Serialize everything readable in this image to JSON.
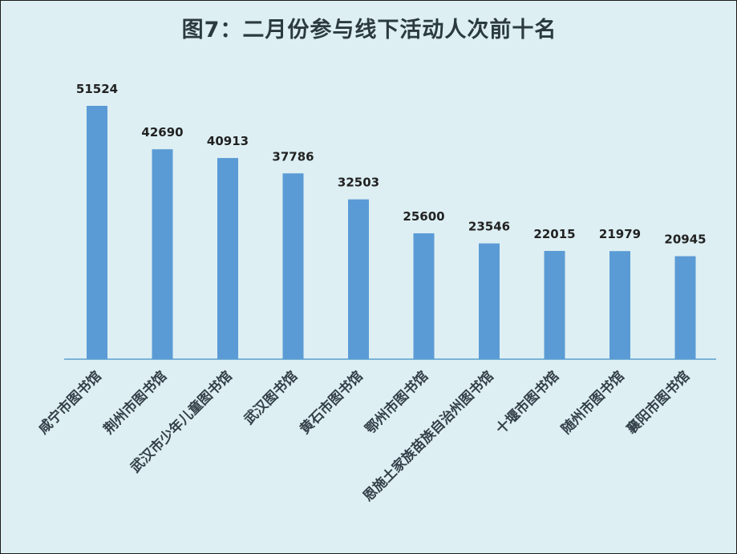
{
  "chart_data": {
    "type": "bar",
    "title": "图7：二月份参与线下活动人次前十名",
    "categories": [
      "咸宁市图书馆",
      "荆州市图书馆",
      "武汉市少年儿童图书馆",
      "武汉图书馆",
      "黄石市图书馆",
      "鄂州市图书馆",
      "恩施土家族苗族自治州图书馆",
      "十堰市图书馆",
      "随州市图书馆",
      "襄阳市图书馆"
    ],
    "values": [
      51524,
      42690,
      40913,
      37786,
      32503,
      25600,
      23546,
      22015,
      21979,
      20945
    ],
    "data_labels": [
      "51524",
      "42690",
      "40913",
      "37786",
      "32503",
      "25600",
      "23546",
      "22015",
      "21979",
      "20945"
    ],
    "xlabel": "",
    "ylabel": "",
    "ylim": [
      0,
      51524
    ],
    "grid": false,
    "legend": "none",
    "colors": {
      "bar": "#5b9bd5",
      "axis": "#5a9fcf",
      "background": "#ddeff3"
    }
  }
}
